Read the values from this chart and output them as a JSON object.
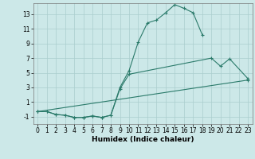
{
  "xlabel": "Humidex (Indice chaleur)",
  "line_color": "#2a7a6a",
  "bg_color": "#cce8e8",
  "grid_color": "#aacece",
  "xlim": [
    -0.5,
    23.5
  ],
  "ylim": [
    -2.0,
    14.5
  ],
  "xticks": [
    0,
    1,
    2,
    3,
    4,
    5,
    6,
    7,
    8,
    9,
    10,
    11,
    12,
    13,
    14,
    15,
    16,
    17,
    18,
    19,
    20,
    21,
    22,
    23
  ],
  "yticks": [
    -1,
    1,
    3,
    5,
    7,
    9,
    11,
    13
  ],
  "sx_a": [
    0,
    1,
    2,
    3,
    4,
    5,
    6,
    7,
    8,
    9,
    10,
    11,
    12,
    13,
    14,
    15,
    16,
    17,
    18
  ],
  "sy_a": [
    -0.3,
    -0.3,
    -0.7,
    -0.8,
    -1.1,
    -1.1,
    -0.9,
    -1.1,
    -0.8,
    3.0,
    5.3,
    9.2,
    11.8,
    12.2,
    13.2,
    14.3,
    13.8,
    13.2,
    10.2
  ],
  "sx_b": [
    0,
    1,
    2,
    3,
    4,
    5,
    6,
    7,
    8,
    9,
    10,
    19,
    20,
    21,
    23
  ],
  "sy_b": [
    -0.3,
    -0.3,
    -0.7,
    -0.8,
    -1.1,
    -1.1,
    -0.9,
    -1.1,
    -0.8,
    2.8,
    4.8,
    7.0,
    5.9,
    6.9,
    4.2
  ],
  "sx_c": [
    0,
    23
  ],
  "sy_c": [
    -0.3,
    4.0
  ],
  "tick_fontsize": 5.5,
  "xlabel_fontsize": 6.5
}
